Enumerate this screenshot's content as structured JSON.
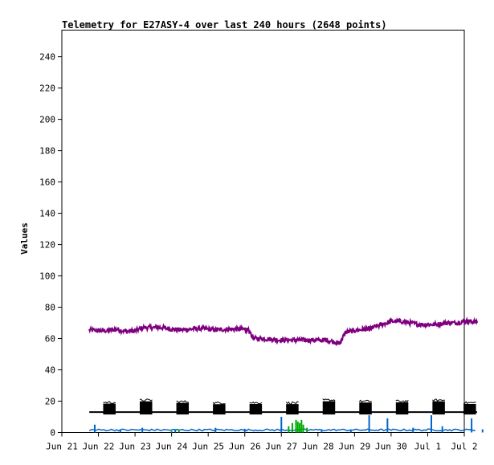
{
  "chart_data": {
    "type": "line",
    "title": "Telemetry for E27ASY-4 over last 240 hours (2648 points)",
    "xlabel": "",
    "ylabel": "Values",
    "ylim": [
      0,
      257
    ],
    "yticks": [
      0,
      20,
      40,
      60,
      80,
      100,
      120,
      140,
      160,
      180,
      200,
      220,
      240
    ],
    "xlim": [
      0,
      11
    ],
    "xtick_labels": [
      "Jun 21",
      "Jun 22",
      "Jun 23",
      "Jun 24",
      "Jun 25",
      "Jun 26",
      "Jun 27",
      "Jun 28",
      "Jun 29",
      "Jun 30",
      "Jul 1",
      "Jul 2"
    ],
    "grid": false,
    "series": [
      {
        "color": "#7f007f",
        "style": "noisy-line",
        "x": [
          0.75,
          1.0,
          1.25,
          1.5,
          1.75,
          2.0,
          2.25,
          2.5,
          2.75,
          3.0,
          3.25,
          3.5,
          3.75,
          4.0,
          4.25,
          4.5,
          4.75,
          5.0,
          5.1,
          5.25,
          5.5,
          5.75,
          6.0,
          6.25,
          6.5,
          6.75,
          7.0,
          7.25,
          7.5,
          7.6,
          7.75,
          8.0,
          8.25,
          8.4,
          8.5,
          8.75,
          9.0,
          9.25,
          9.5,
          9.75,
          10.0,
          10.25,
          10.5,
          10.75,
          11.0,
          11.15,
          11.35
        ],
        "values": [
          65.5,
          65,
          65,
          66,
          64.5,
          65,
          67,
          67,
          67,
          66,
          65.5,
          66,
          66.5,
          66,
          65.5,
          66,
          66,
          66,
          65,
          60,
          60,
          59.5,
          59,
          59,
          59,
          59,
          59,
          59,
          57.5,
          57,
          64,
          65,
          66,
          66,
          67,
          69,
          71,
          71,
          70,
          69,
          69,
          69,
          70,
          70,
          71,
          71,
          70.5
        ]
      },
      {
        "color": "#000000",
        "style": "baseline-with-bursts",
        "baseline": 13,
        "burst_peak": 19,
        "burst_centers": [
          1.3,
          2.3,
          3.3,
          4.3,
          5.3,
          6.3,
          7.3,
          8.3,
          9.3,
          10.3,
          11.15
        ]
      },
      {
        "color": "#0066cc",
        "style": "spiky",
        "baseline": 1,
        "spikes": [
          [
            0.9,
            5
          ],
          [
            1.6,
            2
          ],
          [
            2.2,
            3
          ],
          [
            3.1,
            2
          ],
          [
            4.2,
            3
          ],
          [
            5.0,
            2
          ],
          [
            6.0,
            10
          ],
          [
            7.1,
            2
          ],
          [
            7.9,
            2
          ],
          [
            8.4,
            11
          ],
          [
            8.9,
            9
          ],
          [
            9.6,
            3
          ],
          [
            10.1,
            11
          ],
          [
            10.4,
            4
          ],
          [
            11.2,
            9
          ],
          [
            11.5,
            2
          ]
        ]
      },
      {
        "color": "#00aa00",
        "style": "spiky",
        "baseline": 1,
        "spikes": [
          [
            3.0,
            1
          ],
          [
            3.2,
            2
          ],
          [
            6.2,
            4
          ],
          [
            6.3,
            6
          ],
          [
            6.4,
            8
          ],
          [
            6.45,
            7
          ],
          [
            6.5,
            6
          ],
          [
            6.55,
            8
          ],
          [
            6.6,
            5
          ],
          [
            6.7,
            3
          ]
        ]
      }
    ]
  }
}
